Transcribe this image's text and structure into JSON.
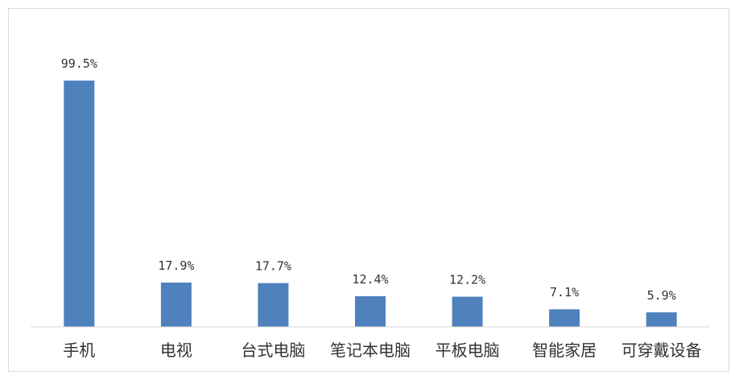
{
  "chart_data": {
    "type": "bar",
    "categories": [
      "手机",
      "电视",
      "台式电脑",
      "笔记本电脑",
      "平板电脑",
      "智能家居",
      "可穿戴设备"
    ],
    "values": [
      99.5,
      17.9,
      17.7,
      12.4,
      12.2,
      7.1,
      5.9
    ],
    "value_labels": [
      "99.5%",
      "17.9%",
      "17.7%",
      "12.4%",
      "12.2%",
      "7.1%",
      "5.9%"
    ],
    "unit": "%",
    "ylim": [
      0,
      100
    ],
    "grid": false,
    "legend": "none",
    "bar_color": "#4f81bd"
  }
}
